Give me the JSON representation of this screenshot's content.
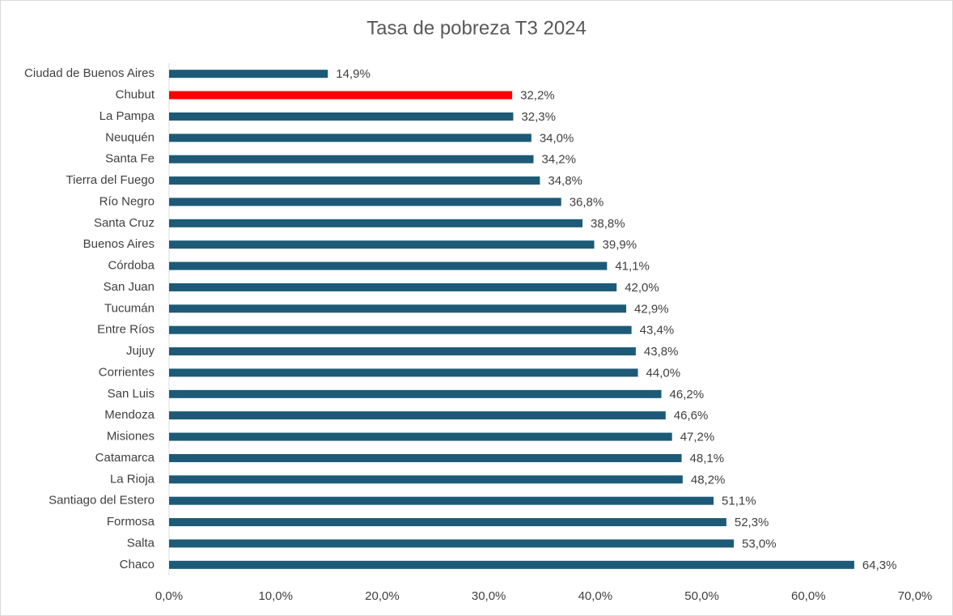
{
  "chart_data": {
    "type": "hbar",
    "title": "Tasa de pobreza T3 2024",
    "categories": [
      "Ciudad de Buenos Aires",
      "Chubut",
      "La Pampa",
      "Neuquén",
      "Santa Fe",
      "Tierra del Fuego",
      "Río Negro",
      "Santa Cruz",
      "Buenos Aires",
      "Córdoba",
      "San Juan",
      "Tucumán",
      "Entre Ríos",
      "Jujuy",
      "Corrientes",
      "San Luis",
      "Mendoza",
      "Misiones",
      "Catamarca",
      "La Rioja",
      "Santiago del Estero",
      "Formosa",
      "Salta",
      "Chaco"
    ],
    "values": [
      14.9,
      32.2,
      32.3,
      34.0,
      34.2,
      34.8,
      36.8,
      38.8,
      39.9,
      41.1,
      42.0,
      42.9,
      43.4,
      43.8,
      44.0,
      46.2,
      46.6,
      47.2,
      48.1,
      48.2,
      51.1,
      52.3,
      53.0,
      64.3
    ],
    "value_labels": [
      "14,9%",
      "32,2%",
      "32,3%",
      "34,0%",
      "34,2%",
      "34,8%",
      "36,8%",
      "38,8%",
      "39,9%",
      "41,1%",
      "42,0%",
      "42,9%",
      "43,4%",
      "43,8%",
      "44,0%",
      "46,2%",
      "46,6%",
      "47,2%",
      "48,1%",
      "48,2%",
      "51,1%",
      "52,3%",
      "53,0%",
      "64,3%"
    ],
    "colors": [
      "#1c5a78",
      "#ff0000",
      "#1c5a78",
      "#1c5a78",
      "#1c5a78",
      "#1c5a78",
      "#1c5a78",
      "#1c5a78",
      "#1c5a78",
      "#1c5a78",
      "#1c5a78",
      "#1c5a78",
      "#1c5a78",
      "#1c5a78",
      "#1c5a78",
      "#1c5a78",
      "#1c5a78",
      "#1c5a78",
      "#1c5a78",
      "#1c5a78",
      "#1c5a78",
      "#1c5a78",
      "#1c5a78",
      "#1c5a78"
    ],
    "xlim": [
      0,
      70
    ],
    "xticks": [
      {
        "value": 0,
        "label": "0,0%"
      },
      {
        "value": 10,
        "label": "10,0%"
      },
      {
        "value": 20,
        "label": "20,0%"
      },
      {
        "value": 30,
        "label": "30,0%"
      },
      {
        "value": 40,
        "label": "40,0%"
      },
      {
        "value": 50,
        "label": "50,0%"
      },
      {
        "value": 60,
        "label": "60,0%"
      },
      {
        "value": 70,
        "label": "70,0%"
      }
    ],
    "grid": false
  }
}
